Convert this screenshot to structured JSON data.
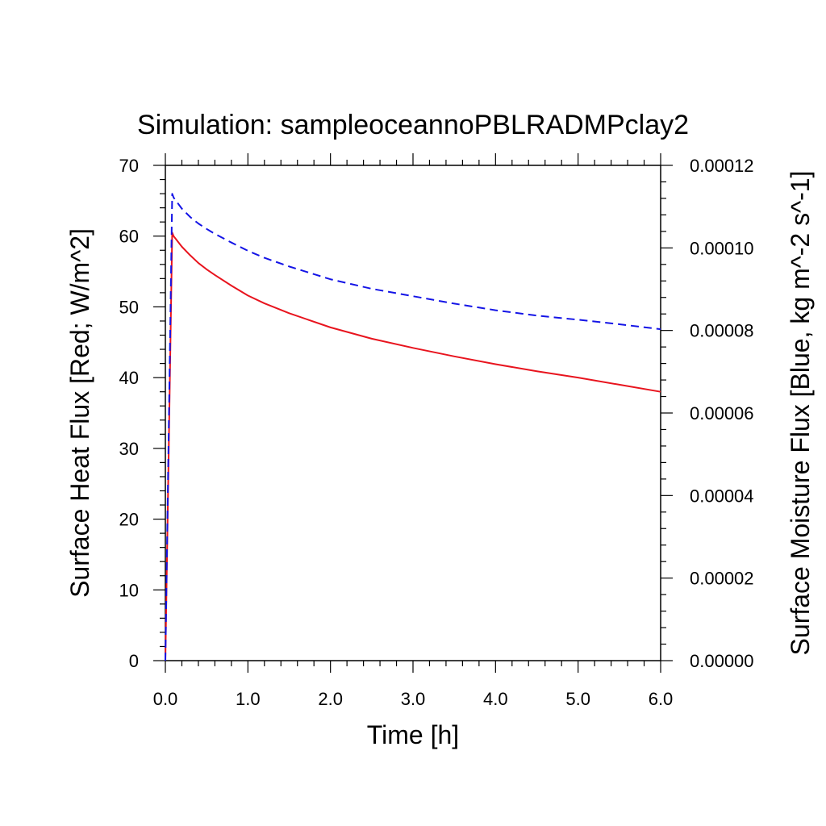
{
  "chart_data": {
    "type": "line",
    "title": "Simulation: sampleoceannoPBLRADMPclay2",
    "xlabel": "Time [h]",
    "ylabel_left": "Surface Heat Flux [Red; W/m^2]",
    "ylabel_right": "Surface Moisture Flux [Blue, kg m^-2 s^-1]",
    "xlim": [
      0,
      6
    ],
    "ylim_left": [
      0,
      70
    ],
    "ylim_right": [
      0,
      0.00012
    ],
    "x_ticks": [
      "0.0",
      "1.0",
      "2.0",
      "3.0",
      "4.0",
      "5.0",
      "6.0"
    ],
    "y_left_ticks": [
      "0",
      "10",
      "20",
      "30",
      "40",
      "50",
      "60",
      "70"
    ],
    "y_right_ticks": [
      "0.00000",
      "0.00002",
      "0.00004",
      "0.00006",
      "0.00008",
      "0.00010",
      "0.00012"
    ],
    "grid": false,
    "series": [
      {
        "axis": "left",
        "color": "#e8141e",
        "style": "solid",
        "x": [
          0,
          0.083,
          0.1,
          0.2,
          0.3,
          0.4,
          0.5,
          0.6,
          0.8,
          1.0,
          1.2,
          1.5,
          2.0,
          2.5,
          3.0,
          3.5,
          4.0,
          4.5,
          5.0,
          5.5,
          6.0
        ],
        "y": [
          0,
          60.5,
          60.0,
          58.5,
          57.3,
          56.2,
          55.3,
          54.5,
          53.0,
          51.6,
          50.5,
          49.1,
          47.1,
          45.5,
          44.2,
          43.0,
          41.9,
          40.9,
          40.0,
          39.0,
          38.0
        ]
      },
      {
        "axis": "right",
        "color": "#1414e6",
        "style": "dashed",
        "x": [
          0,
          0.083,
          0.1,
          0.2,
          0.3,
          0.4,
          0.5,
          0.6,
          0.8,
          1.0,
          1.2,
          1.5,
          2.0,
          2.5,
          3.0,
          3.5,
          4.0,
          4.5,
          5.0,
          5.5,
          6.0
        ],
        "y": [
          0,
          0.0001131,
          0.0001122,
          0.0001095,
          0.0001075,
          0.0001059,
          0.0001046,
          0.0001034,
          0.0001013,
          9.93e-05,
          9.76e-05,
          9.55e-05,
          9.24e-05,
          9.01e-05,
          8.83e-05,
          8.65e-05,
          8.49e-05,
          8.36e-05,
          8.26e-05,
          8.15e-05,
          8.03e-05
        ]
      }
    ]
  }
}
